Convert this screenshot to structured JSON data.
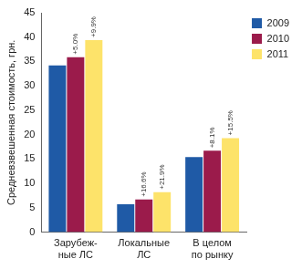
{
  "chart_data": {
    "type": "bar",
    "y_label": "Средневзвешенная стоимость, грн.",
    "categories": [
      [
        "Зарубеж-",
        "ные ЛС"
      ],
      [
        "Локальные",
        "ЛС"
      ],
      [
        "В целом",
        "по рынку"
      ]
    ],
    "series": [
      {
        "name": "2009",
        "color": "#1f5aa6",
        "values": [
          34.2,
          5.7,
          15.4
        ]
      },
      {
        "name": "2010",
        "color": "#9b1b4b",
        "values": [
          35.9,
          6.7,
          16.7
        ],
        "annotations": [
          "+5.0%",
          "+16.6%",
          "+8.1%"
        ]
      },
      {
        "name": "2011",
        "color": "#fde36a",
        "values": [
          39.4,
          8.2,
          19.3
        ],
        "annotations": [
          "+9.9%",
          "+21.9%",
          "+15.5%"
        ]
      }
    ],
    "ylim": [
      0,
      45
    ],
    "yticks": [
      0,
      5,
      10,
      15,
      20,
      25,
      30,
      35,
      40,
      45
    ],
    "grid": false,
    "legend": "right"
  }
}
